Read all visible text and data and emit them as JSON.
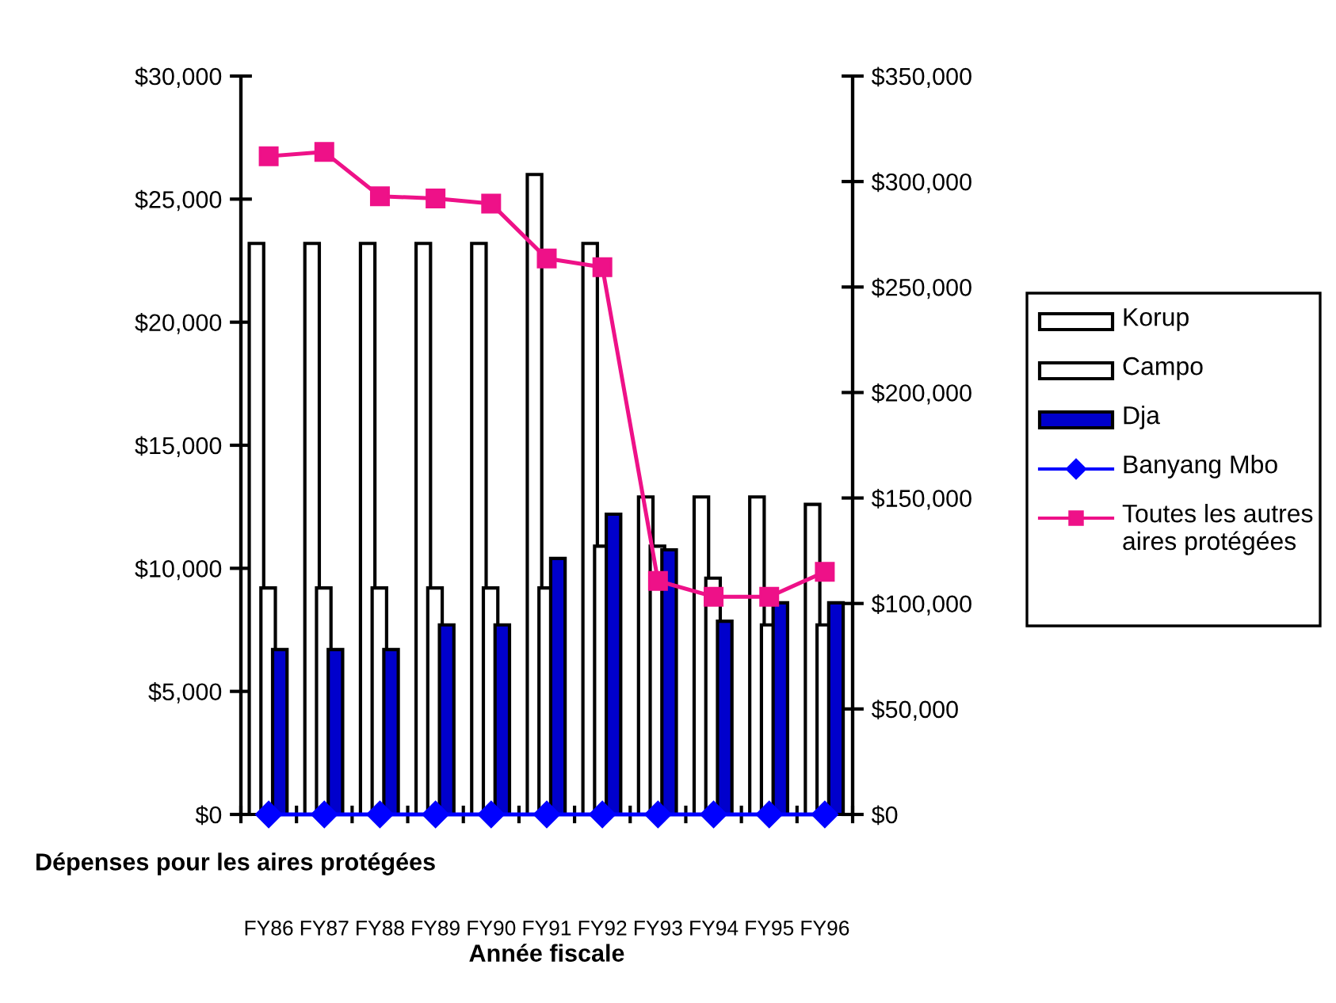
{
  "chart_data": {
    "type": "bar",
    "xlabel": "Année fiscale",
    "categories": [
      "FY86",
      "FY87",
      "FY88",
      "FY89",
      "FY90",
      "FY91",
      "FY92",
      "FY93",
      "FY94",
      "FY95",
      "FY96"
    ],
    "series": [
      {
        "name": "Korup",
        "color": "#ffffff",
        "values": [
          23200,
          23200,
          23200,
          23200,
          23200,
          26000,
          23200,
          12900,
          12900,
          12900,
          12600
        ]
      },
      {
        "name": "Campo",
        "color": "#ffffff",
        "values": [
          9200,
          9200,
          9200,
          9200,
          9200,
          9200,
          10900,
          10900,
          9600,
          7700,
          7700
        ]
      },
      {
        "name": "Dja",
        "color": "#0000cc",
        "values": [
          6700,
          6700,
          6700,
          7700,
          7700,
          10400,
          12200,
          10750,
          7850,
          8600,
          8600
        ]
      },
      {
        "name": "Banyang Mbo",
        "type": "line",
        "axis": "y2",
        "marker": "diamond",
        "color": "#0000ff",
        "values": [
          0,
          0,
          0,
          0,
          0,
          0,
          0,
          0,
          0,
          0,
          0
        ]
      },
      {
        "name": "Toutes les autres aires protégées",
        "type": "line",
        "axis": "y2",
        "marker": "square",
        "color": "#ee1188",
        "values": [
          312000,
          314000,
          293000,
          292000,
          289500,
          263500,
          259400,
          110700,
          103200,
          103200,
          115000
        ]
      }
    ],
    "ylim": [
      0,
      30000
    ],
    "yticks": [
      {
        "value": 0,
        "label": "$0"
      },
      {
        "value": 5000,
        "label": "$5,000"
      },
      {
        "value": 10000,
        "label": "$10,000"
      },
      {
        "value": 15000,
        "label": "$15,000"
      },
      {
        "value": 20000,
        "label": "$20,000"
      },
      {
        "value": 25000,
        "label": "$25,000"
      },
      {
        "value": 30000,
        "label": "$30,000"
      }
    ],
    "y2lim": [
      0,
      350000
    ],
    "y2ticks": [
      {
        "value": 0,
        "label": "$0"
      },
      {
        "value": 50000,
        "label": "$50,000"
      },
      {
        "value": 100000,
        "label": "$100,000"
      },
      {
        "value": 150000,
        "label": "$150,000"
      },
      {
        "value": 200000,
        "label": "$200,000"
      },
      {
        "value": 250000,
        "label": "$250,000"
      },
      {
        "value": 300000,
        "label": "$300,000"
      },
      {
        "value": 350000,
        "label": "$350,000"
      }
    ],
    "annotations": [
      "Dépenses pour les aires protégées"
    ],
    "grid": false,
    "legend": "right"
  }
}
